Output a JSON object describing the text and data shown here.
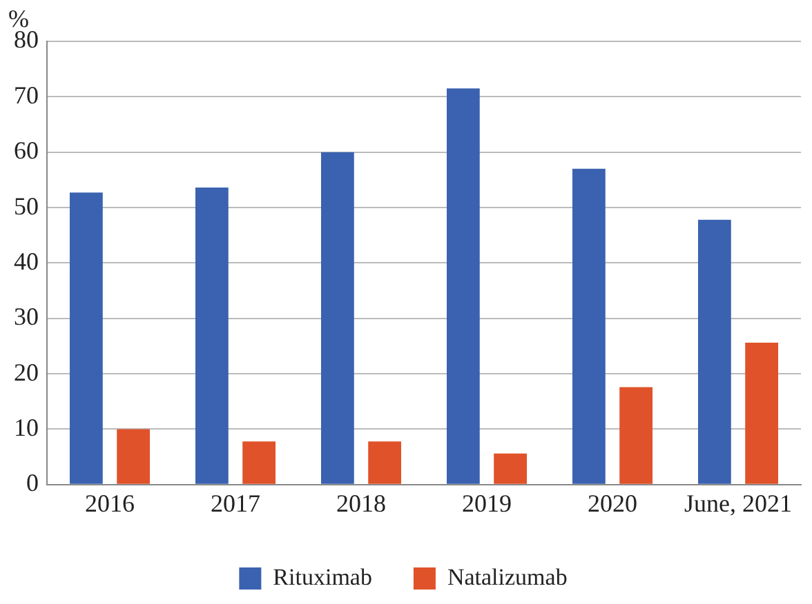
{
  "chart_data": {
    "type": "bar",
    "ylabel": "%",
    "categories": [
      "2016",
      "2017",
      "2018",
      "2019",
      "2020",
      "June, 2021"
    ],
    "series": [
      {
        "name": "Rituximab",
        "color": "#3a62b0",
        "values": [
          52.7,
          53.6,
          60,
          71.5,
          57,
          47.8
        ]
      },
      {
        "name": "Natalizumab",
        "color": "#e0522a",
        "values": [
          10,
          7.8,
          7.8,
          5.6,
          17.6,
          25.6
        ]
      }
    ],
    "ylim": [
      0,
      80
    ],
    "yticks": [
      0,
      10,
      20,
      30,
      40,
      50,
      60,
      70,
      80
    ],
    "grid": "y",
    "legend": "bottom"
  }
}
